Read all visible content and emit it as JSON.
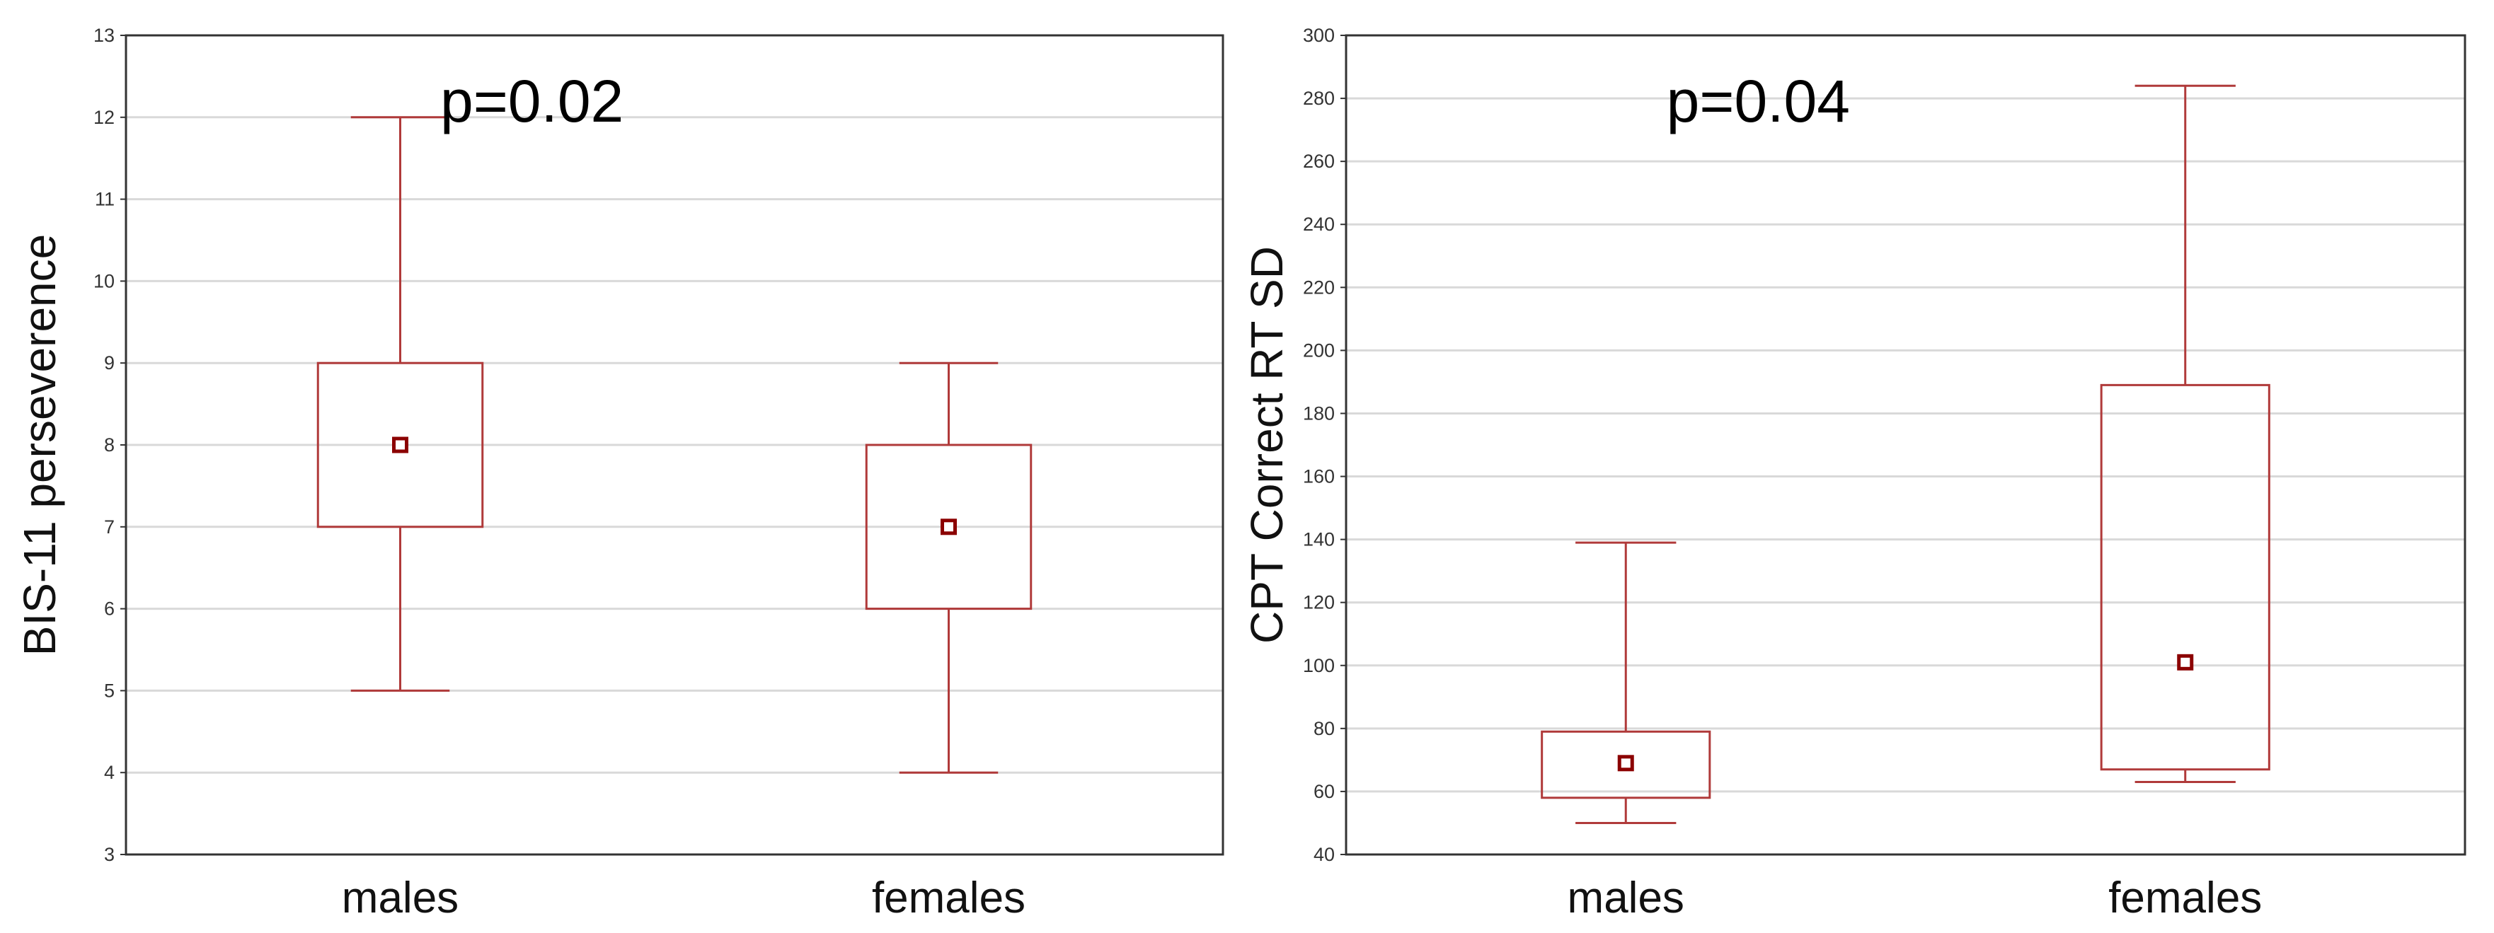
{
  "colors": {
    "box": "#b03a3a",
    "median": "#8b0000",
    "grid": "#d9d9d9",
    "frame": "#333333"
  },
  "chart_data": [
    {
      "type": "boxplot",
      "ylabel": "BIS-11 perseverence",
      "xlabel": "",
      "annotation": "p=0.02",
      "ylim": [
        3,
        13
      ],
      "yticks": [
        3,
        4,
        5,
        6,
        7,
        8,
        9,
        10,
        11,
        12,
        13
      ],
      "grid": true,
      "categories": [
        "males",
        "females"
      ],
      "boxes": [
        {
          "category": "males",
          "min": 5,
          "q1": 7,
          "median": 8,
          "q3": 9,
          "max": 12
        },
        {
          "category": "females",
          "min": 4,
          "q1": 6,
          "median": 7,
          "q3": 8,
          "max": 9
        }
      ]
    },
    {
      "type": "boxplot",
      "ylabel": "CPT Correct RT SD",
      "xlabel": "",
      "annotation": "p=0.04",
      "ylim": [
        40,
        300
      ],
      "yticks": [
        40,
        60,
        80,
        100,
        120,
        140,
        160,
        180,
        200,
        220,
        240,
        260,
        280,
        300
      ],
      "grid": true,
      "categories": [
        "males",
        "females"
      ],
      "boxes": [
        {
          "category": "males",
          "min": 50,
          "q1": 58,
          "median": 69,
          "q3": 79,
          "max": 139
        },
        {
          "category": "females",
          "min": 63,
          "q1": 67,
          "median": 101,
          "q3": 189,
          "max": 284
        }
      ]
    }
  ]
}
